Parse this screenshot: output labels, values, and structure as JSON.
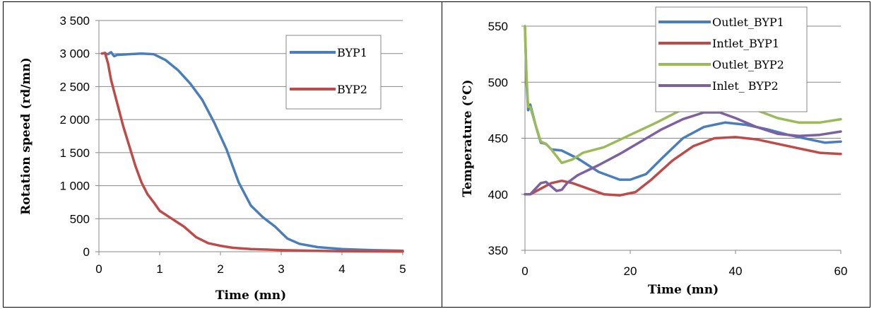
{
  "chart_data": [
    {
      "type": "line",
      "xlabel": "Time (mn)",
      "ylabel": "Rotation speed (rd/mn)",
      "xlim": [
        0,
        5
      ],
      "ylim": [
        0,
        3500
      ],
      "xticks": [
        "0",
        "1",
        "2",
        "3",
        "4",
        "5"
      ],
      "yticks": [
        "0",
        "500",
        "1 000",
        "1 500",
        "2 000",
        "2 500",
        "3 000",
        "3 500"
      ],
      "grid": "horizontal",
      "legend_position": "top-right",
      "series": [
        {
          "name": "BYP1",
          "color": "#4a7ebb",
          "points": [
            [
              0.1,
              3000
            ],
            [
              0.15,
              2990
            ],
            [
              0.2,
              3020
            ],
            [
              0.25,
              2960
            ],
            [
              0.3,
              2980
            ],
            [
              0.5,
              2990
            ],
            [
              0.7,
              3000
            ],
            [
              0.9,
              2990
            ],
            [
              1.1,
              2900
            ],
            [
              1.3,
              2750
            ],
            [
              1.5,
              2550
            ],
            [
              1.7,
              2300
            ],
            [
              1.9,
              1950
            ],
            [
              2.1,
              1550
            ],
            [
              2.3,
              1050
            ],
            [
              2.5,
              700
            ],
            [
              2.7,
              520
            ],
            [
              2.9,
              380
            ],
            [
              3.1,
              200
            ],
            [
              3.3,
              120
            ],
            [
              3.6,
              70
            ],
            [
              4.0,
              40
            ],
            [
              4.5,
              25
            ],
            [
              5.0,
              15
            ]
          ]
        },
        {
          "name": "BYP2",
          "color": "#be4b48",
          "points": [
            [
              0.05,
              3000
            ],
            [
              0.1,
              3010
            ],
            [
              0.15,
              2850
            ],
            [
              0.2,
              2600
            ],
            [
              0.3,
              2250
            ],
            [
              0.4,
              1900
            ],
            [
              0.5,
              1600
            ],
            [
              0.6,
              1300
            ],
            [
              0.7,
              1050
            ],
            [
              0.8,
              870
            ],
            [
              0.9,
              750
            ],
            [
              1.0,
              620
            ],
            [
              1.2,
              500
            ],
            [
              1.4,
              380
            ],
            [
              1.6,
              220
            ],
            [
              1.8,
              130
            ],
            [
              2.0,
              90
            ],
            [
              2.2,
              60
            ],
            [
              2.5,
              40
            ],
            [
              3.0,
              25
            ],
            [
              3.5,
              15
            ],
            [
              4.0,
              8
            ],
            [
              5.0,
              3
            ]
          ]
        }
      ]
    },
    {
      "type": "line",
      "xlabel": "Time (mn)",
      "ylabel": "Temperature (°C)",
      "xlim": [
        0,
        60
      ],
      "ylim": [
        350,
        550
      ],
      "xticks": [
        "0",
        "20",
        "40",
        "60"
      ],
      "yticks": [
        "350",
        "400",
        "450",
        "500",
        "550"
      ],
      "grid": "horizontal",
      "legend_position": "top-right",
      "series": [
        {
          "name": "Outlet_BYP1",
          "color": "#4a7ebb",
          "points": [
            [
              0,
              550
            ],
            [
              0.3,
              500
            ],
            [
              0.6,
              475
            ],
            [
              1,
              480
            ],
            [
              2,
              462
            ],
            [
              3,
              446
            ],
            [
              4,
              445
            ],
            [
              5,
              440
            ],
            [
              7,
              439
            ],
            [
              10,
              432
            ],
            [
              14,
              420
            ],
            [
              18,
              413
            ],
            [
              20,
              413
            ],
            [
              23,
              418
            ],
            [
              26,
              432
            ],
            [
              30,
              450
            ],
            [
              34,
              460
            ],
            [
              38,
              464
            ],
            [
              42,
              462
            ],
            [
              46,
              458
            ],
            [
              50,
              453
            ],
            [
              54,
              449
            ],
            [
              57,
              446
            ],
            [
              60,
              447
            ]
          ]
        },
        {
          "name": "Intlet_BYP1",
          "color": "#be4b48",
          "points": [
            [
              0,
              400
            ],
            [
              1,
              400
            ],
            [
              3,
              405
            ],
            [
              5,
              410
            ],
            [
              7,
              412
            ],
            [
              9,
              410
            ],
            [
              12,
              405
            ],
            [
              15,
              400
            ],
            [
              18,
              399
            ],
            [
              21,
              402
            ],
            [
              24,
              413
            ],
            [
              28,
              430
            ],
            [
              32,
              443
            ],
            [
              36,
              450
            ],
            [
              40,
              451
            ],
            [
              44,
              449
            ],
            [
              48,
              445
            ],
            [
              52,
              441
            ],
            [
              56,
              437
            ],
            [
              60,
              436
            ]
          ]
        },
        {
          "name": "Outlet_BYP2",
          "color": "#9bbb59",
          "points": [
            [
              0,
              550
            ],
            [
              0.3,
              505
            ],
            [
              0.6,
              478
            ],
            [
              1,
              478
            ],
            [
              2,
              462
            ],
            [
              3,
              447
            ],
            [
              4,
              445
            ],
            [
              5,
              440
            ],
            [
              7,
              428
            ],
            [
              9,
              431
            ],
            [
              11,
              437
            ],
            [
              15,
              442
            ],
            [
              20,
              453
            ],
            [
              25,
              464
            ],
            [
              30,
              476
            ],
            [
              34,
              484
            ],
            [
              37,
              486
            ],
            [
              40,
              483
            ],
            [
              44,
              475
            ],
            [
              48,
              468
            ],
            [
              52,
              464
            ],
            [
              56,
              464
            ],
            [
              60,
              467
            ]
          ]
        },
        {
          "name": "Inlet_ BYP2",
          "color": "#7d60a0",
          "points": [
            [
              0,
              400
            ],
            [
              1,
              400
            ],
            [
              2,
              405
            ],
            [
              3,
              410
            ],
            [
              4,
              411
            ],
            [
              5,
              407
            ],
            [
              6,
              403
            ],
            [
              7,
              404
            ],
            [
              8,
              410
            ],
            [
              10,
              417
            ],
            [
              14,
              426
            ],
            [
              18,
              436
            ],
            [
              22,
              447
            ],
            [
              26,
              458
            ],
            [
              30,
              467
            ],
            [
              34,
              473
            ],
            [
              37,
              473
            ],
            [
              40,
              468
            ],
            [
              44,
              460
            ],
            [
              48,
              454
            ],
            [
              52,
              452
            ],
            [
              56,
              453
            ],
            [
              60,
              456
            ]
          ]
        }
      ]
    }
  ]
}
